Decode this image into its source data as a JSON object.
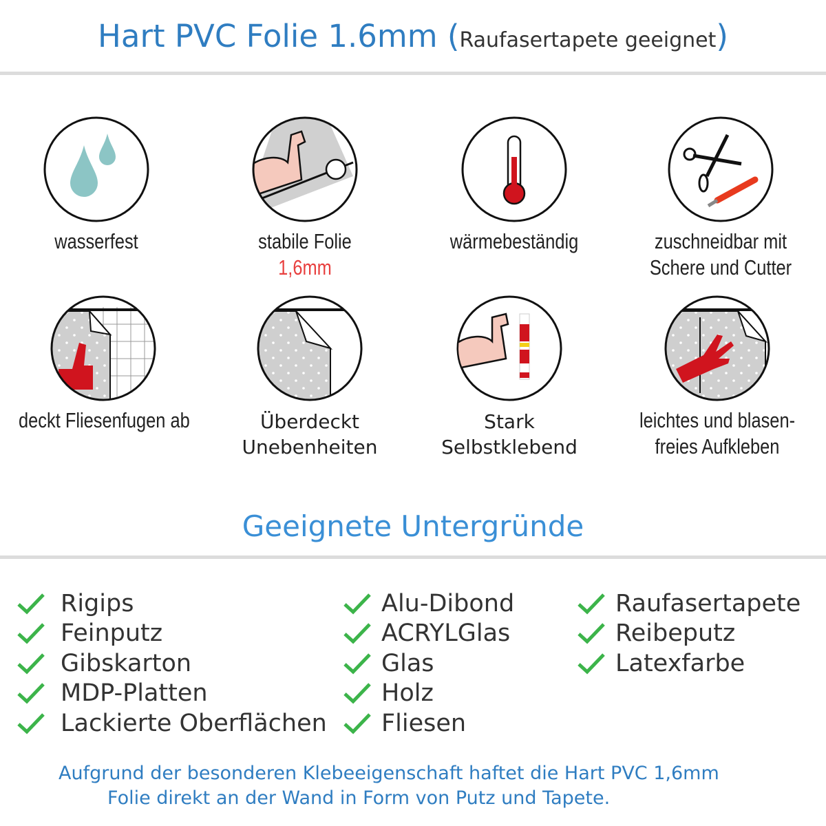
{
  "header": {
    "title": "Hart PVC Folie 1.6mm",
    "subtitle": "Raufasertapete geeignet",
    "open_paren": "(",
    "close_paren": ")"
  },
  "features": [
    {
      "icon": "water-drops-icon",
      "lines": [
        "wasserfest"
      ]
    },
    {
      "icon": "strong-arm-foil-roll-icon",
      "lines": [
        "stabile Folie"
      ],
      "highlight": "1,6mm"
    },
    {
      "icon": "thermometer-icon",
      "lines": [
        "wärmebeständig"
      ]
    },
    {
      "icon": "scissors-cutter-icon",
      "lines": [
        "zuschneidbar mit",
        "Schere und Cutter"
      ]
    },
    {
      "icon": "thumbs-up-tiles-icon",
      "lines": [
        "deckt Fliesenfugen ab"
      ]
    },
    {
      "icon": "foil-peel-icon",
      "lines": [
        "Überdeckt",
        "Unebenheiten"
      ]
    },
    {
      "icon": "arm-glue-icon",
      "lines": [
        "Stark",
        "Selbstklebend"
      ]
    },
    {
      "icon": "hand-smooth-icon",
      "lines": [
        "leichtes und blasen-",
        "freies Aufkleben"
      ]
    }
  ],
  "section_title": "Geeignete Untergründe",
  "surfaces": {
    "col1": [
      "Rigips",
      "Feinputz",
      "Gibskarton",
      "MDP-Platten",
      "Lackierte Oberflächen"
    ],
    "col2": [
      "Alu-Dibond",
      "ACRYLGlas",
      "Glas",
      "Holz",
      "Fliesen"
    ],
    "col3": [
      "Raufasertapete",
      "Reibeputz",
      "Latexfarbe"
    ]
  },
  "footer": {
    "line1": "Aufgrund der besonderen Klebeeigenschaft haftet die Hart PVC 1,6mm",
    "line2": "Folie direkt an der Wand in Form von Putz und Tapete."
  },
  "colors": {
    "title_blue": "#2f7dc1",
    "section_blue": "#3a8fd6",
    "check_green": "#3cb44a",
    "accent_red": "#e8403f"
  }
}
